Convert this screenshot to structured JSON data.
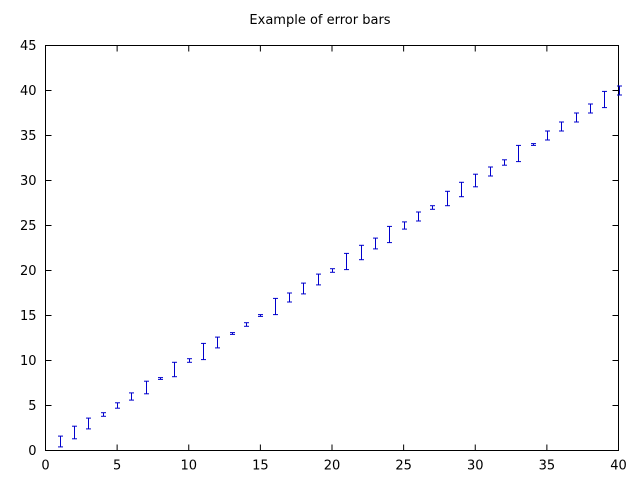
{
  "chart_data": {
    "type": "scatter",
    "title": "Example of error bars",
    "xlabel": "",
    "ylabel": "",
    "xlim": [
      0,
      40
    ],
    "ylim": [
      0,
      45
    ],
    "xticks": [
      0,
      5,
      10,
      15,
      20,
      25,
      30,
      35,
      40
    ],
    "yticks": [
      0,
      5,
      10,
      15,
      20,
      25,
      30,
      35,
      40,
      45
    ],
    "grid": false,
    "legend": "none",
    "marker_color": "#0000cc",
    "series": [
      {
        "x": [
          1,
          2,
          3,
          4,
          5,
          6,
          7,
          8,
          9,
          10,
          11,
          12,
          13,
          14,
          15,
          16,
          17,
          18,
          19,
          20,
          21,
          22,
          23,
          24,
          25,
          26,
          27,
          28,
          29,
          30,
          31,
          32,
          33,
          34,
          35,
          36,
          37,
          38,
          39,
          40
        ],
        "y": [
          1,
          2,
          3,
          4,
          5,
          6,
          7,
          8,
          9,
          10,
          11,
          12,
          13,
          14,
          15,
          16,
          17,
          18,
          19,
          20,
          21,
          22,
          23,
          24,
          25,
          26,
          27,
          28,
          29,
          30,
          31,
          32,
          33,
          34,
          35,
          36,
          37,
          38,
          39,
          40
        ],
        "yerr": [
          0.6,
          0.7,
          0.6,
          0.2,
          0.3,
          0.4,
          0.7,
          0.1,
          0.8,
          0.2,
          0.9,
          0.6,
          0.1,
          0.2,
          0.1,
          0.9,
          0.5,
          0.6,
          0.6,
          0.2,
          0.9,
          0.8,
          0.6,
          0.9,
          0.4,
          0.5,
          0.2,
          0.8,
          0.8,
          0.7,
          0.5,
          0.3,
          0.9,
          0.1,
          0.5,
          0.5,
          0.5,
          0.5,
          0.9,
          0.5
        ]
      }
    ]
  }
}
